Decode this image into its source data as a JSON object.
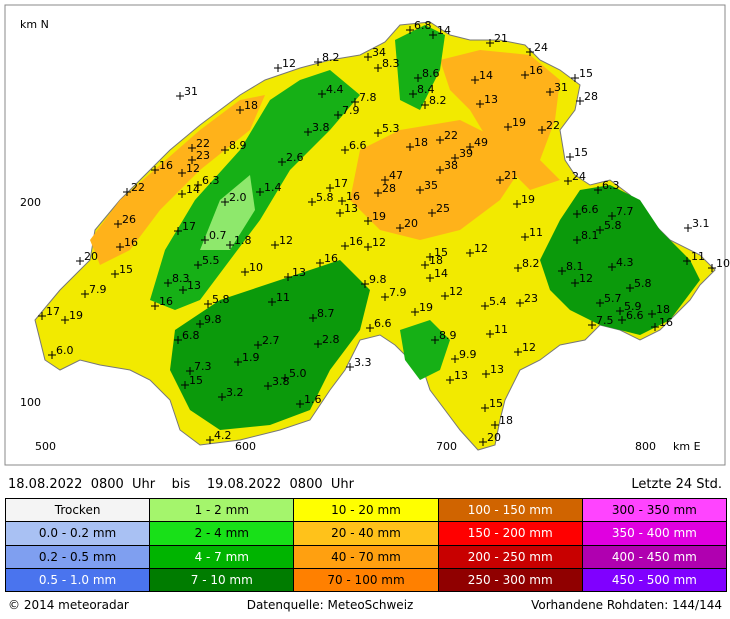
{
  "map": {
    "axis": {
      "north_label": "km N",
      "east_label": "km E",
      "y_labels": [
        "200",
        "100"
      ],
      "x_labels": [
        "500",
        "600",
        "700",
        "800"
      ]
    },
    "stations": [
      "6.8",
      "14",
      "21",
      "24",
      "8.2",
      "34",
      "8.3",
      "12",
      "8.6",
      "14",
      "16",
      "15",
      "31",
      "4.4",
      "7.8",
      "8.4",
      "8.2",
      "13",
      "31",
      "28",
      "18",
      "7.9",
      "3.8",
      "5.3",
      "19",
      "22",
      "22",
      "22",
      "8.9",
      "6.6",
      "18",
      "49",
      "39",
      "23",
      "2.6",
      "15",
      "16",
      "12",
      "38",
      "6.3",
      "47",
      "21",
      "24",
      "22",
      "14",
      "17",
      "28",
      "35",
      "6.3",
      "1.4",
      "2.0",
      "5.8",
      "16",
      "19",
      "13",
      "25",
      "6.6",
      "7.7",
      "26",
      "17",
      "19",
      "20",
      "5.8",
      "3.1",
      "0.7",
      "1.8",
      "12",
      "16",
      "12",
      "11",
      "8.1",
      "16",
      "15",
      "12",
      "20",
      "5.5",
      "16",
      "18",
      "8.2",
      "8.1",
      "4.3",
      "11",
      "10",
      "15",
      "10",
      "13",
      "14",
      "8.3",
      "13",
      "9.8",
      "12",
      "5.8",
      "7.9",
      "7.9",
      "12",
      "11",
      "16",
      "5.8",
      "5.4",
      "23",
      "5.7",
      "17",
      "19",
      "8.7",
      "19",
      "5.9",
      "18",
      "9.8",
      "6.6",
      "7.5",
      "6.6",
      "16",
      "6.8",
      "11",
      "2.7",
      "2.8",
      "8.9",
      "6.0",
      "12",
      "9.9",
      "1.9",
      "3.3",
      "7.3",
      "5.0",
      "13",
      "15",
      "3.8",
      "13",
      "3.2",
      "1.6",
      "15",
      "18",
      "4.2",
      "20"
    ]
  },
  "period": {
    "text": "18.08.2022  0800  Uhr    bis    19.08.2022  0800  Uhr",
    "window": "Letzte 24 Std."
  },
  "legend": [
    [
      {
        "label": "Trocken",
        "color": "#f4f4f4"
      },
      {
        "label": "0.0 - 0.2 mm",
        "color": "#a9c1f3"
      },
      {
        "label": "0.2 - 0.5 mm",
        "color": "#7f9ff0"
      },
      {
        "label": "0.5 - 1.0 mm",
        "color": "#4a74ee"
      }
    ],
    [
      {
        "label": "1 - 2 mm",
        "color": "#a4f56c"
      },
      {
        "label": "2 - 4 mm",
        "color": "#18e018"
      },
      {
        "label": "4 - 7 mm",
        "color": "#00b400"
      },
      {
        "label": "7 - 10 mm",
        "color": "#007c00"
      }
    ],
    [
      {
        "label": "10 - 20 mm",
        "color": "#ffff00"
      },
      {
        "label": "20 - 40 mm",
        "color": "#ffc21a"
      },
      {
        "label": "40 - 70 mm",
        "color": "#ffa010"
      },
      {
        "label": "70 - 100 mm",
        "color": "#ff8000"
      }
    ],
    [
      {
        "label": "100 - 150 mm",
        "color": "#d06400"
      },
      {
        "label": "150 - 200 mm",
        "color": "#ff0000"
      },
      {
        "label": "200 - 250 mm",
        "color": "#c80000"
      },
      {
        "label": "250 - 300 mm",
        "color": "#900000"
      }
    ],
    [
      {
        "label": "300 - 350 mm",
        "color": "#ff44ff"
      },
      {
        "label": "350 - 400 mm",
        "color": "#e000e0"
      },
      {
        "label": "400 - 450 mm",
        "color": "#b000b0"
      },
      {
        "label": "450 - 500 mm",
        "color": "#8000ff"
      }
    ]
  ],
  "footer": {
    "copyright": "© 2014  meteoradar",
    "source": "Datenquelle: MeteoSchweiz",
    "raw": "Vorhandene Rohdaten: 144/144"
  }
}
